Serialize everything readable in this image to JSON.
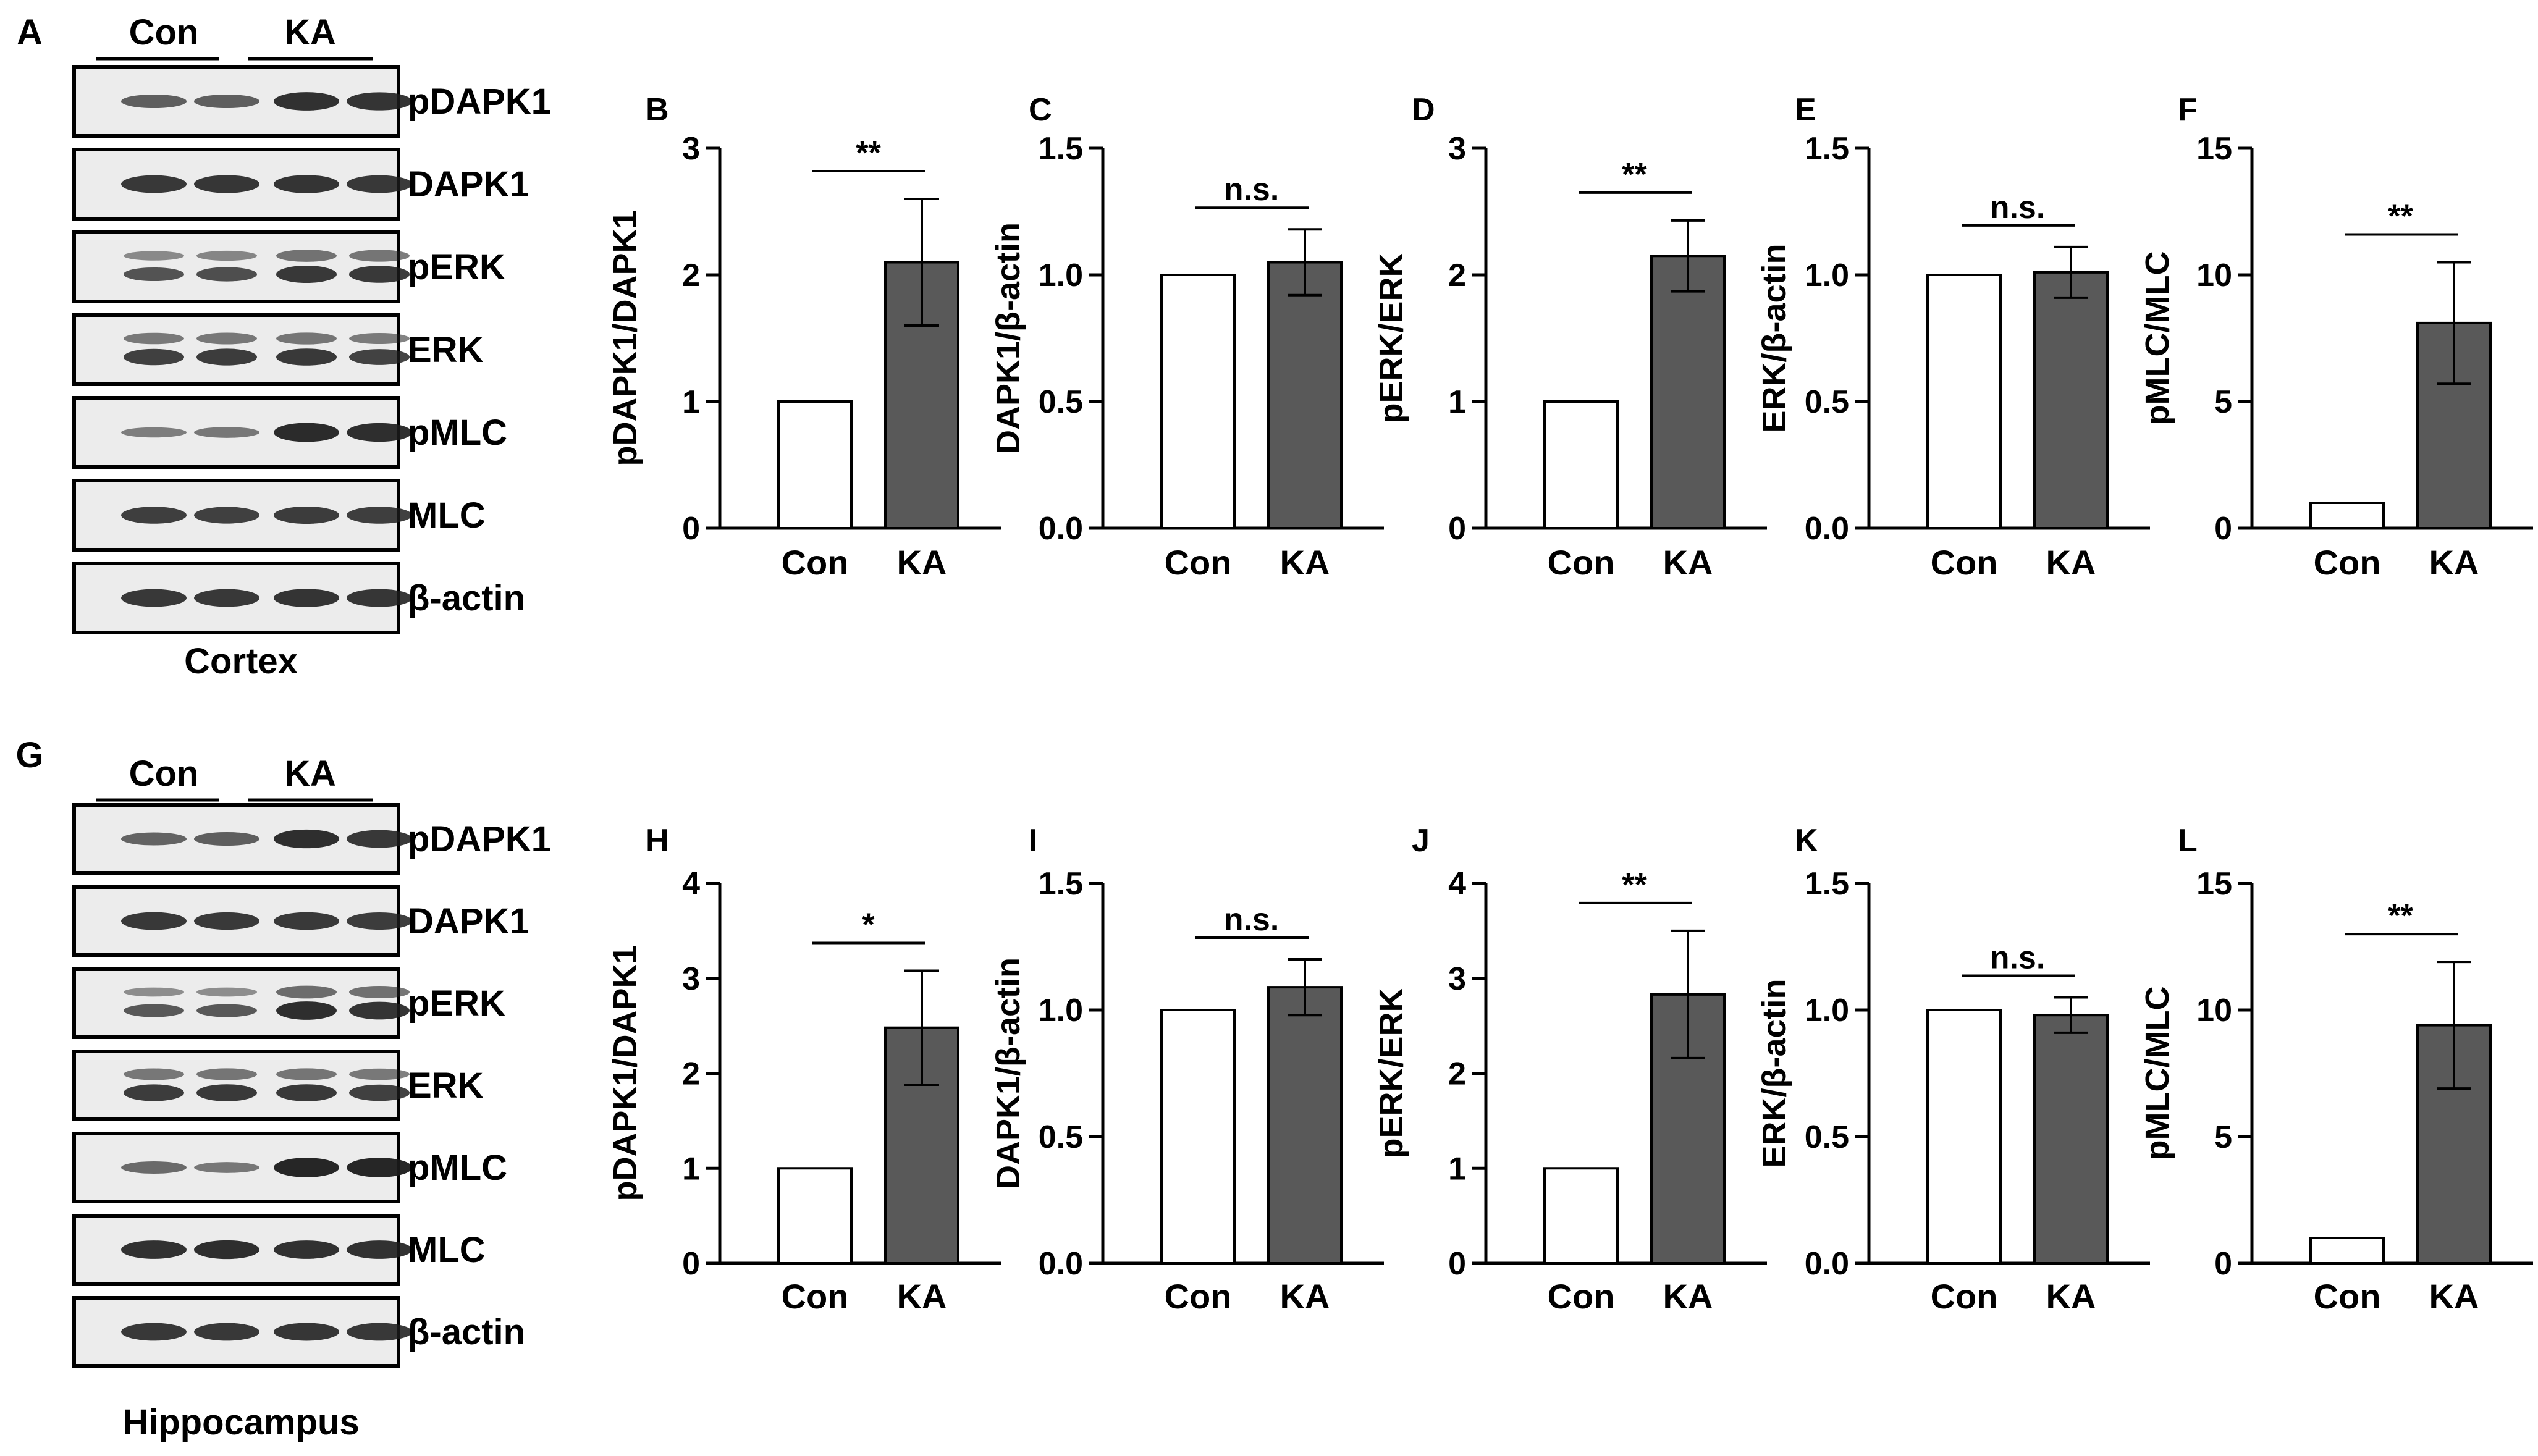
{
  "colors": {
    "con_fill": "#ffffff",
    "ka_fill": "#595959",
    "axis": "#000000",
    "blot_bg": "#ececec",
    "band": "#1a1a1a"
  },
  "sections": [
    {
      "letter": "A",
      "tissue": "Cortex",
      "group_labels": [
        "Con",
        "KA"
      ],
      "blot_rows": [
        {
          "label": "pDAPK1",
          "intensities": [
            0.55,
            0.55,
            0.9,
            0.88
          ],
          "doublet": false
        },
        {
          "label": "DAPK1",
          "intensities": [
            0.85,
            0.87,
            0.88,
            0.85
          ],
          "doublet": false
        },
        {
          "label": "pERK",
          "intensities": [
            0.55,
            0.6,
            0.82,
            0.8
          ],
          "doublet": true
        },
        {
          "label": "ERK",
          "intensities": [
            0.75,
            0.78,
            0.8,
            0.72
          ],
          "doublet": true
        },
        {
          "label": "pMLC",
          "intensities": [
            0.3,
            0.35,
            0.95,
            0.92
          ],
          "doublet": false
        },
        {
          "label": "MLC",
          "intensities": [
            0.8,
            0.78,
            0.82,
            0.8
          ],
          "doublet": false
        },
        {
          "label": "β-actin",
          "intensities": [
            0.85,
            0.85,
            0.88,
            0.86
          ],
          "doublet": false
        }
      ]
    },
    {
      "letter": "G",
      "tissue": "Hippocampus",
      "group_labels": [
        "Con",
        "KA"
      ],
      "blot_rows": [
        {
          "label": "pDAPK1",
          "intensities": [
            0.5,
            0.55,
            0.92,
            0.85
          ],
          "doublet": false
        },
        {
          "label": "DAPK1",
          "intensities": [
            0.85,
            0.83,
            0.84,
            0.82
          ],
          "doublet": false
        },
        {
          "label": "pERK",
          "intensities": [
            0.5,
            0.5,
            0.9,
            0.85
          ],
          "doublet": true
        },
        {
          "label": "ERK",
          "intensities": [
            0.78,
            0.8,
            0.8,
            0.75
          ],
          "doublet": true
        },
        {
          "label": "pMLC",
          "intensities": [
            0.45,
            0.35,
            0.98,
            0.98
          ],
          "doublet": false
        },
        {
          "label": "MLC",
          "intensities": [
            0.9,
            0.92,
            0.9,
            0.9
          ],
          "doublet": false
        },
        {
          "label": "β-actin",
          "intensities": [
            0.85,
            0.85,
            0.86,
            0.85
          ],
          "doublet": false
        }
      ]
    }
  ],
  "chart_data": [
    {
      "panel": "B",
      "type": "bar",
      "ylabel": "pDAPK1/DAPK1",
      "categories": [
        "Con",
        "KA"
      ],
      "values": [
        1,
        2.1
      ],
      "errors": [
        0,
        0.5
      ],
      "ylim": [
        0,
        3
      ],
      "yticks": [
        "0",
        "1",
        "2",
        "3"
      ],
      "significance": "**"
    },
    {
      "panel": "C",
      "type": "bar",
      "ylabel": "DAPK1/β-actin",
      "categories": [
        "Con",
        "KA"
      ],
      "values": [
        1.0,
        1.05
      ],
      "errors": [
        0,
        0.13
      ],
      "ylim": [
        0,
        1.5
      ],
      "yticks": [
        "0.0",
        "0.5",
        "1.0",
        "1.5"
      ],
      "significance": "n.s."
    },
    {
      "panel": "D",
      "type": "bar",
      "ylabel": "pERK/ERK",
      "categories": [
        "Con",
        "KA"
      ],
      "values": [
        1,
        2.15
      ],
      "errors": [
        0,
        0.28
      ],
      "ylim": [
        0,
        3
      ],
      "yticks": [
        "0",
        "1",
        "2",
        "3"
      ],
      "significance": "**"
    },
    {
      "panel": "E",
      "type": "bar",
      "ylabel": "ERK/β-actin",
      "categories": [
        "Con",
        "KA"
      ],
      "values": [
        1.0,
        1.01
      ],
      "errors": [
        0,
        0.1
      ],
      "ylim": [
        0,
        1.5
      ],
      "yticks": [
        "0.0",
        "0.5",
        "1.0",
        "1.5"
      ],
      "significance": "n.s."
    },
    {
      "panel": "F",
      "type": "bar",
      "ylabel": "pMLC/MLC",
      "categories": [
        "Con",
        "KA"
      ],
      "values": [
        1,
        8.1
      ],
      "errors": [
        0,
        2.4
      ],
      "ylim": [
        0,
        15
      ],
      "yticks": [
        "0",
        "5",
        "10",
        "15"
      ],
      "significance": "**"
    },
    {
      "panel": "H",
      "type": "bar",
      "ylabel": "pDAPK1/DAPK1",
      "categories": [
        "Con",
        "KA"
      ],
      "values": [
        1,
        2.48
      ],
      "errors": [
        0,
        0.6
      ],
      "ylim": [
        0,
        4
      ],
      "yticks": [
        "0",
        "1",
        "2",
        "3",
        "4"
      ],
      "significance": "*"
    },
    {
      "panel": "I",
      "type": "bar",
      "ylabel": "DAPK1/β-actin",
      "categories": [
        "Con",
        "KA"
      ],
      "values": [
        1.0,
        1.09
      ],
      "errors": [
        0,
        0.11
      ],
      "ylim": [
        0,
        1.5
      ],
      "yticks": [
        "0.0",
        "0.5",
        "1.0",
        "1.5"
      ],
      "significance": "n.s."
    },
    {
      "panel": "J",
      "type": "bar",
      "ylabel": "pERK/ERK",
      "categories": [
        "Con",
        "KA"
      ],
      "values": [
        1,
        2.83
      ],
      "errors": [
        0,
        0.67
      ],
      "ylim": [
        0,
        4
      ],
      "yticks": [
        "0",
        "1",
        "2",
        "3",
        "4"
      ],
      "significance": "**"
    },
    {
      "panel": "K",
      "type": "bar",
      "ylabel": "ERK/β-actin",
      "categories": [
        "Con",
        "KA"
      ],
      "values": [
        1.0,
        0.98
      ],
      "errors": [
        0,
        0.07
      ],
      "ylim": [
        0,
        1.5
      ],
      "yticks": [
        "0.0",
        "0.5",
        "1.0",
        "1.5"
      ],
      "significance": "n.s."
    },
    {
      "panel": "L",
      "type": "bar",
      "ylabel": "pMLC/MLC",
      "categories": [
        "Con",
        "KA"
      ],
      "values": [
        1,
        9.4
      ],
      "errors": [
        0,
        2.5
      ],
      "ylim": [
        0,
        15
      ],
      "yticks": [
        "0",
        "5",
        "10",
        "15"
      ],
      "significance": "**"
    }
  ]
}
